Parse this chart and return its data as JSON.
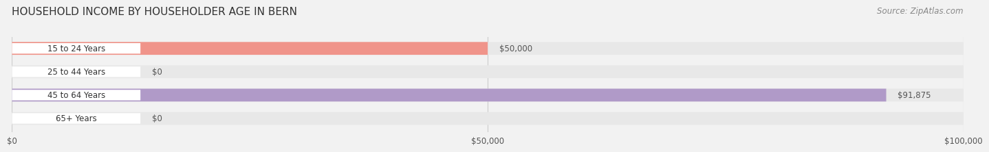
{
  "title": "HOUSEHOLD INCOME BY HOUSEHOLDER AGE IN BERN",
  "source": "Source: ZipAtlas.com",
  "categories": [
    "15 to 24 Years",
    "25 to 44 Years",
    "45 to 64 Years",
    "65+ Years"
  ],
  "values": [
    50000,
    0,
    91875,
    0
  ],
  "bar_colors": [
    "#f0948a",
    "#a8c8e8",
    "#b09ac8",
    "#78ccd8"
  ],
  "max_value": 100000,
  "x_ticks": [
    0,
    50000,
    100000
  ],
  "x_tick_labels": [
    "$0",
    "$50,000",
    "$100,000"
  ],
  "value_labels": [
    "$50,000",
    "$0",
    "$91,875",
    "$0"
  ],
  "background_color": "#f2f2f2",
  "bar_bg_color": "#e8e8e8",
  "title_fontsize": 11,
  "source_fontsize": 8.5,
  "label_fontsize": 8.5,
  "value_fontsize": 8.5,
  "tick_fontsize": 8.5
}
